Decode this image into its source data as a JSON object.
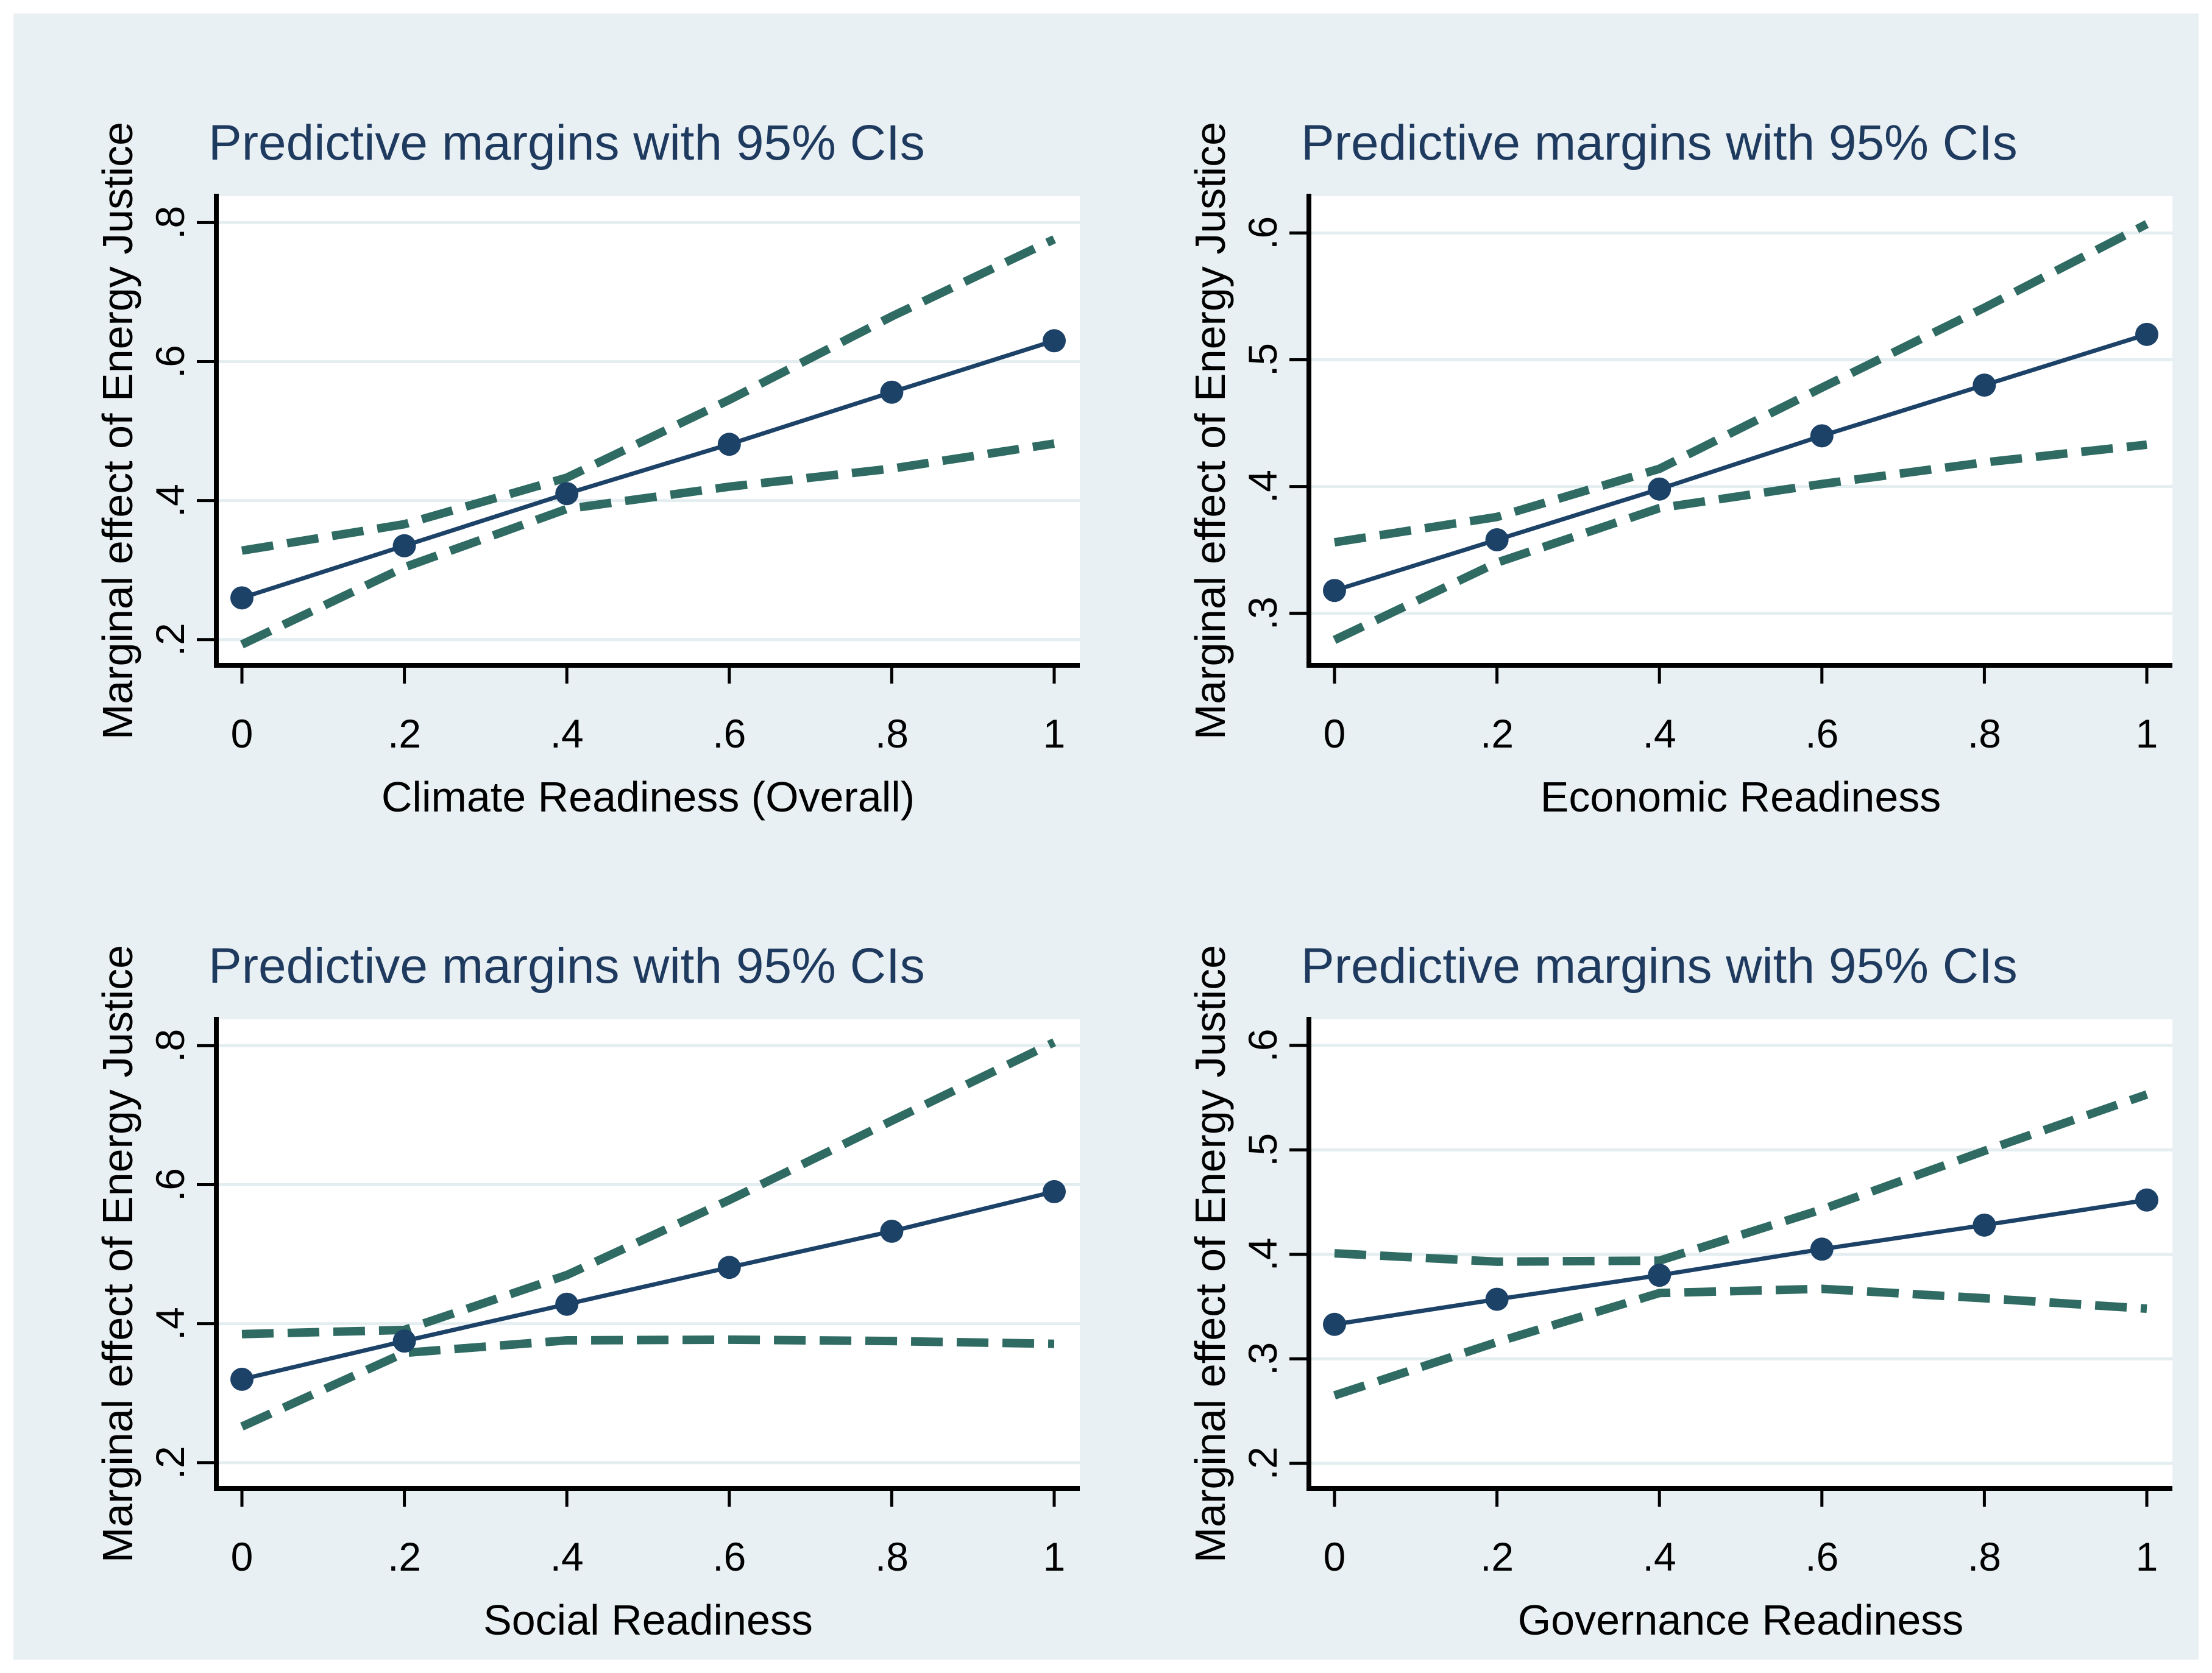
{
  "style": {
    "page_bg": "#ffffff",
    "panel_bg": "#e9f0f3",
    "plot_bg": "#ffffff",
    "grid_color": "#e4eef1",
    "axis_color": "#000000",
    "text_color": "#000000",
    "title_color": "#1f3a5f",
    "line_color": "#1d4268",
    "ci_color": "#2f6b63"
  },
  "chart_data": [
    {
      "type": "line",
      "title": "Predictive margins with 95% CIs",
      "xlabel": "Climate Readiness (Overall)",
      "ylabel": "Marginal effect of Energy Justice",
      "x": [
        0,
        0.2,
        0.4,
        0.6,
        0.8,
        1
      ],
      "xtick_labels": [
        "0",
        ".2",
        ".4",
        ".6",
        ".8",
        "1"
      ],
      "yticks": [
        0.2,
        0.4,
        0.6,
        0.8
      ],
      "ytick_labels": [
        ".2",
        ".4",
        ".6",
        ".8"
      ],
      "ylim": [
        0.163,
        0.838
      ],
      "grid": true,
      "legend": "none",
      "series": [
        {
          "name": "Predictive margin",
          "style": "solid-marker",
          "values": [
            0.26,
            0.335,
            0.41,
            0.481,
            0.556,
            0.63
          ]
        },
        {
          "name": "95% CI upper bound",
          "style": "dashed",
          "values": [
            0.328,
            0.366,
            0.433,
            0.545,
            0.665,
            0.776
          ]
        },
        {
          "name": "95% CI lower bound",
          "style": "dashed",
          "values": [
            0.193,
            0.304,
            0.388,
            0.42,
            0.446,
            0.482
          ]
        }
      ]
    },
    {
      "type": "line",
      "title": "Predictive margins with 95% CIs",
      "xlabel": "Economic Readiness",
      "ylabel": "Marginal effect of Energy Justice",
      "x": [
        0,
        0.2,
        0.4,
        0.6,
        0.8,
        1
      ],
      "xtick_labels": [
        "0",
        ".2",
        ".4",
        ".6",
        ".8",
        "1"
      ],
      "yticks": [
        0.3,
        0.4,
        0.5,
        0.6
      ],
      "ytick_labels": [
        ".3",
        ".4",
        ".5",
        ".6"
      ],
      "ylim": [
        0.259,
        0.629
      ],
      "grid": true,
      "legend": "none",
      "series": [
        {
          "name": "Predictive margin",
          "style": "solid-marker",
          "values": [
            0.318,
            0.358,
            0.398,
            0.44,
            0.48,
            0.52
          ]
        },
        {
          "name": "95% CI upper bound",
          "style": "dashed",
          "values": [
            0.356,
            0.376,
            0.414,
            0.478,
            0.541,
            0.607
          ]
        },
        {
          "name": "95% CI lower bound",
          "style": "dashed",
          "values": [
            0.279,
            0.34,
            0.383,
            0.402,
            0.419,
            0.433
          ]
        }
      ]
    },
    {
      "type": "line",
      "title": "Predictive margins with 95% CIs",
      "xlabel": "Social Readiness",
      "ylabel": "Marginal effect of Energy Justice",
      "x": [
        0,
        0.2,
        0.4,
        0.6,
        0.8,
        1
      ],
      "xtick_labels": [
        "0",
        ".2",
        ".4",
        ".6",
        ".8",
        "1"
      ],
      "yticks": [
        0.2,
        0.4,
        0.6,
        0.8
      ],
      "ytick_labels": [
        ".2",
        ".4",
        ".6",
        ".8"
      ],
      "ylim": [
        0.163,
        0.838
      ],
      "grid": true,
      "legend": "none",
      "series": [
        {
          "name": "Predictive margin",
          "style": "solid-marker",
          "values": [
            0.32,
            0.375,
            0.428,
            0.481,
            0.533,
            0.59
          ]
        },
        {
          "name": "95% CI upper bound",
          "style": "dashed",
          "values": [
            0.385,
            0.391,
            0.47,
            0.578,
            0.692,
            0.805
          ]
        },
        {
          "name": "95% CI lower bound",
          "style": "dashed",
          "values": [
            0.252,
            0.358,
            0.376,
            0.377,
            0.375,
            0.371
          ]
        }
      ]
    },
    {
      "type": "line",
      "title": "Predictive margins with 95% CIs",
      "xlabel": "Governance Readiness",
      "ylabel": "Marginal effect of Energy Justice",
      "x": [
        0,
        0.2,
        0.4,
        0.6,
        0.8,
        1
      ],
      "xtick_labels": [
        "0",
        ".2",
        ".4",
        ".6",
        ".8",
        "1"
      ],
      "yticks": [
        0.2,
        0.3,
        0.4,
        0.5,
        0.6
      ],
      "ytick_labels": [
        ".2",
        ".3",
        ".4",
        ".5",
        ".6"
      ],
      "ylim": [
        0.176,
        0.625
      ],
      "grid": true,
      "legend": "none",
      "series": [
        {
          "name": "Predictive margin",
          "style": "solid-marker",
          "values": [
            0.333,
            0.357,
            0.38,
            0.405,
            0.428,
            0.452
          ]
        },
        {
          "name": "95% CI upper bound",
          "style": "dashed",
          "values": [
            0.401,
            0.393,
            0.394,
            0.443,
            0.499,
            0.553
          ]
        },
        {
          "name": "95% CI lower bound",
          "style": "dashed",
          "values": [
            0.265,
            0.316,
            0.363,
            0.367,
            0.358,
            0.348
          ]
        }
      ]
    }
  ]
}
